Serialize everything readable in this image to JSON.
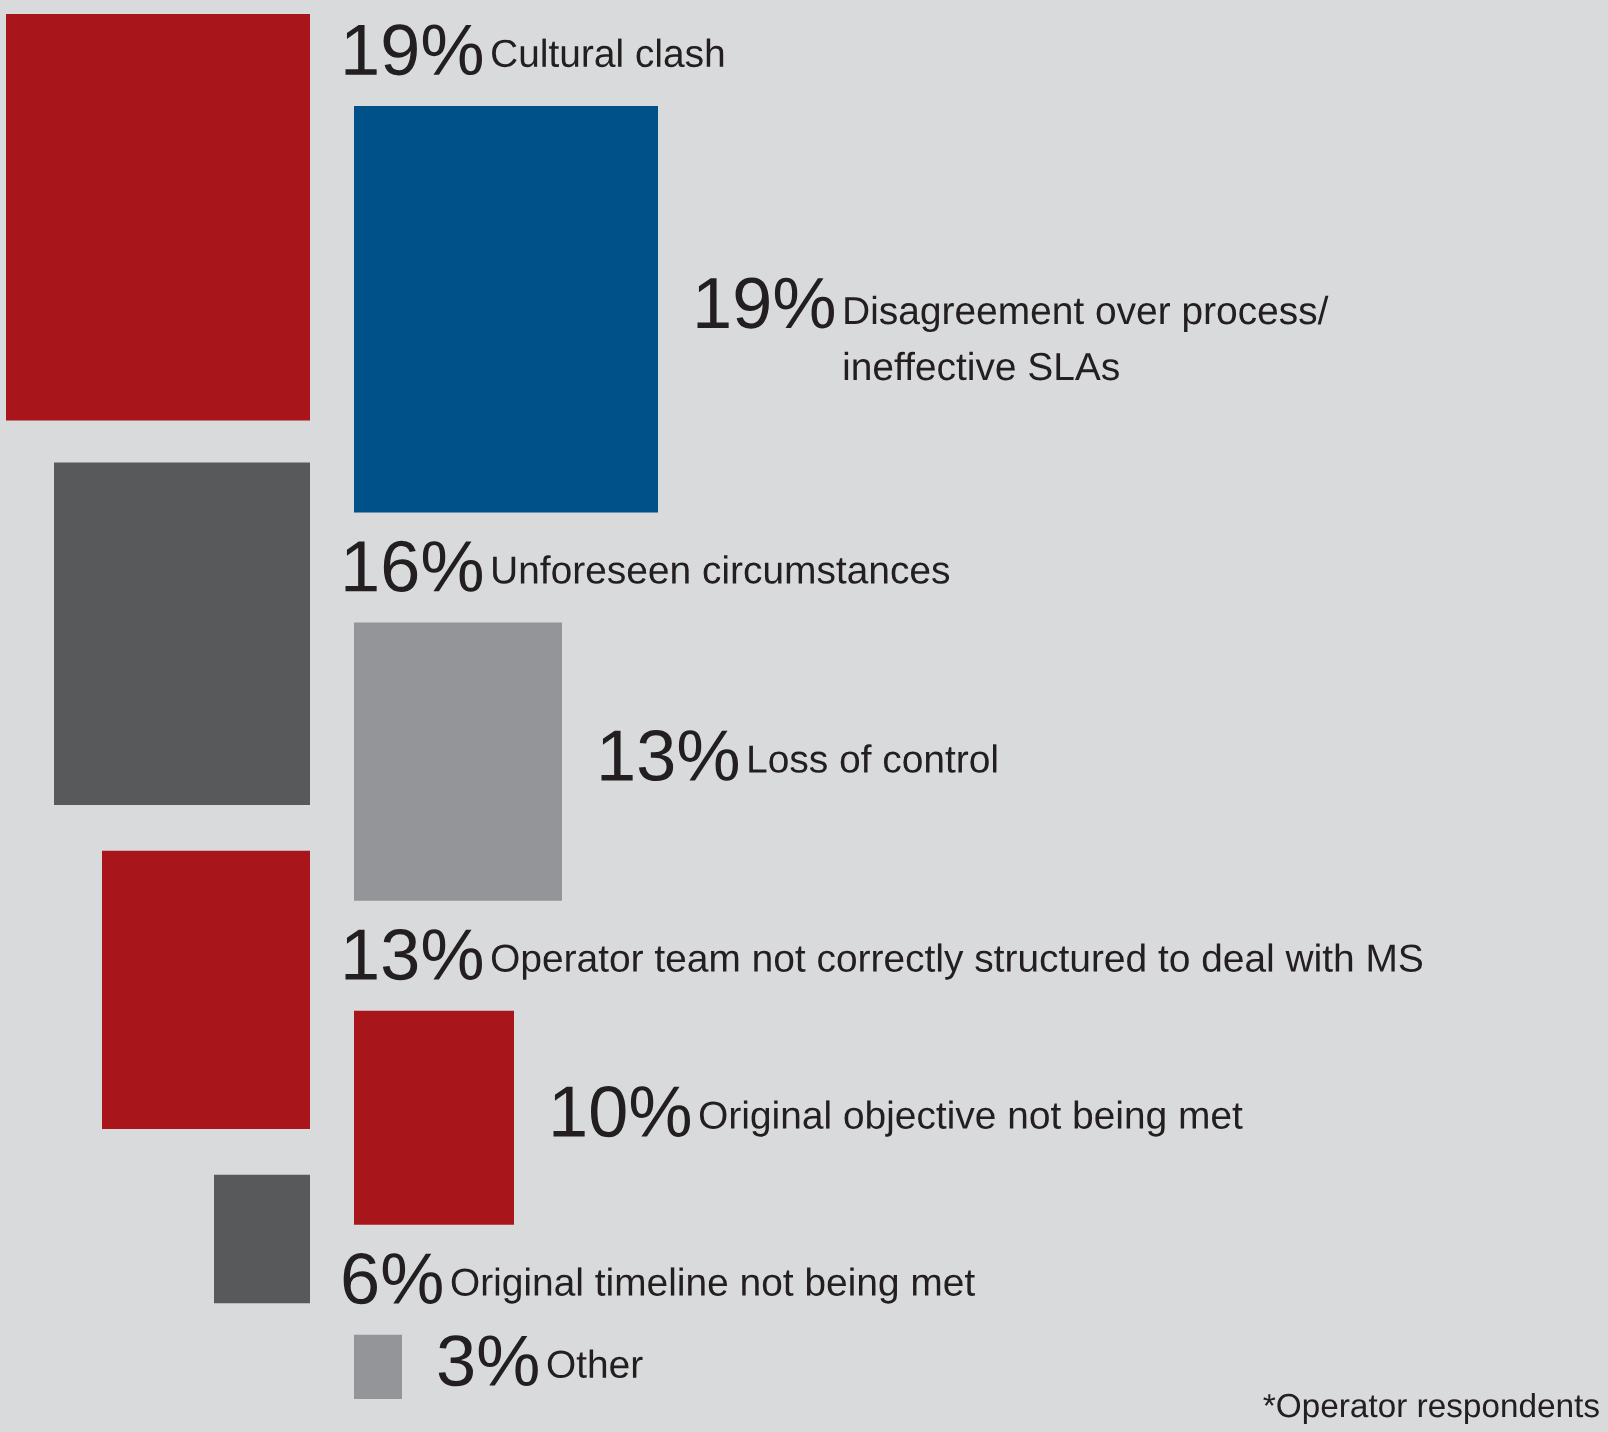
{
  "chart_data": {
    "type": "other",
    "categories": [
      "Cultural clash",
      "Disagreement over process/\nineffective SLAs",
      "Unforeseen circumstances",
      "Loss of control",
      "Operator team not correctly structured to deal with MS",
      "Original objective not being met",
      "Original timeline not being met",
      "Other"
    ],
    "values": [
      19,
      19,
      16,
      13,
      13,
      10,
      6,
      3
    ],
    "value_labels": [
      "19%",
      "19%",
      "16%",
      "13%",
      "13%",
      "10%",
      "6%",
      "3%"
    ],
    "colors": [
      "#a8151b",
      "#00508a",
      "#58595b",
      "#939598",
      "#a8151b",
      "#a8151b",
      "#58595b",
      "#939598"
    ],
    "annotations": [
      "*Operator respondents"
    ]
  }
}
